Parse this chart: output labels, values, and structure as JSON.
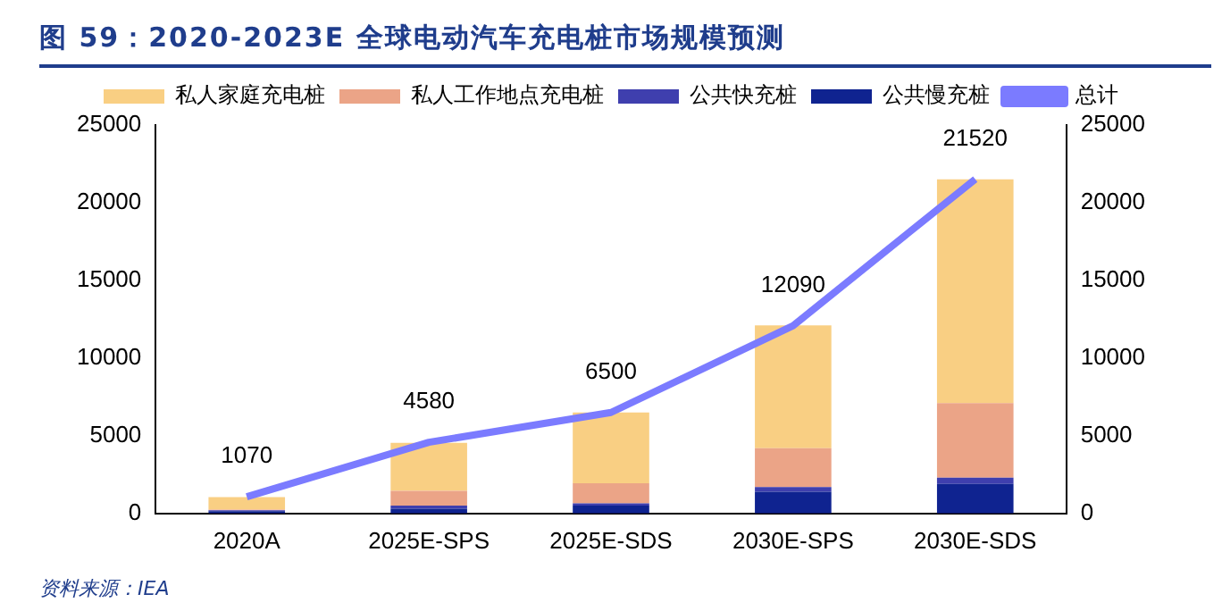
{
  "chart_data": {
    "type": "bar",
    "title": "图 59：2020-2023E 全球电动汽车充电桩市场规模预测",
    "categories": [
      "2020A",
      "2025E-SPS",
      "2025E-SDS",
      "2030E-SPS",
      "2030E-SDS"
    ],
    "stacked": true,
    "series": [
      {
        "name": "公共慢充桩",
        "color": "#0f2390",
        "values": [
          150,
          300,
          500,
          1400,
          1900
        ]
      },
      {
        "name": "公共快充桩",
        "color": "#3f3fae",
        "values": [
          50,
          200,
          150,
          300,
          400
        ]
      },
      {
        "name": "私人工作地点充电桩",
        "color": "#eba487",
        "values": [
          50,
          950,
          1300,
          2500,
          4800
        ]
      },
      {
        "name": "私人家庭充电桩",
        "color": "#f9cf83",
        "values": [
          800,
          3100,
          4550,
          7900,
          14400
        ]
      },
      {
        "name": "总计",
        "type": "line",
        "color": "#7b7bff",
        "values": [
          1070,
          4580,
          6500,
          12090,
          21520
        ],
        "value_labels": [
          "1070",
          "4580",
          "6500",
          "12090",
          "21520"
        ]
      }
    ],
    "ylim": [
      0,
      25000
    ],
    "yticks": [
      0,
      5000,
      10000,
      15000,
      20000,
      25000
    ],
    "y2lim": [
      0,
      25000
    ],
    "y2ticks": [
      0,
      5000,
      10000,
      15000,
      20000,
      25000
    ],
    "grid": false,
    "legend": "top",
    "marker": "none",
    "annotations": [
      "资料来源：IEA"
    ]
  }
}
